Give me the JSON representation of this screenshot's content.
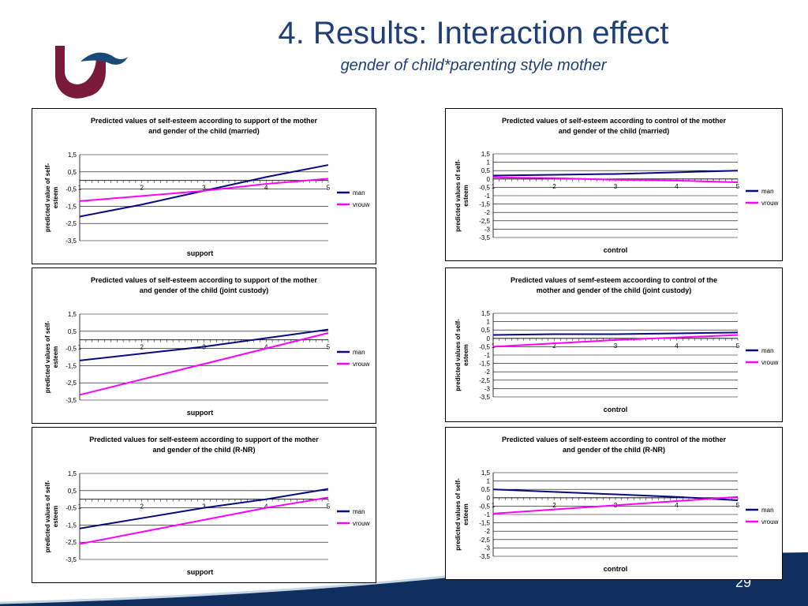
{
  "slide": {
    "title": "4. Results: Interaction effect",
    "subtitle": "gender of child*parenting style mother",
    "page_number": "29"
  },
  "colors": {
    "title": "#1f3f78",
    "logo_dark": "#7a1a3a",
    "logo_light": "#1a4a78",
    "man": "#0a0a80",
    "vrouw": "#ff00ff",
    "band": "#0f2f5f"
  },
  "chart_data": [
    {
      "type": "line",
      "title_lines": [
        "Predicted values of self-esteem according to support of the mother",
        "and gender of the child (married)"
      ],
      "ylabel_lines": [
        "predicted value of self-",
        "esteem"
      ],
      "xlabel": "support",
      "x": [
        1,
        2,
        3,
        4,
        5
      ],
      "yticks": [
        "1,5",
        "0,5",
        "-0,5",
        "-1,5",
        "-2,5",
        "-3,5"
      ],
      "ylim": [
        -3.5,
        1.5
      ],
      "ystep": 1,
      "series": [
        {
          "name": "man",
          "values": [
            -2.1,
            -1.4,
            -0.6,
            0.2,
            0.9
          ]
        },
        {
          "name": "vrouw",
          "values": [
            -1.2,
            -0.9,
            -0.6,
            -0.2,
            0.1
          ]
        }
      ],
      "legend": "right"
    },
    {
      "type": "line",
      "title_lines": [
        "Predicted values of self-esteem according to control of the mother",
        "and gender of the child (married)"
      ],
      "ylabel_lines": [
        "predicted values of self-",
        "esteem"
      ],
      "xlabel": "control",
      "x": [
        1,
        2,
        3,
        4,
        5
      ],
      "yticks": [
        "1,5",
        "1",
        "0,5",
        "0",
        "-0,5",
        "-1",
        "-1,5",
        "-2",
        "-2,5",
        "-3",
        "-3,5"
      ],
      "ylim": [
        -3.5,
        1.5
      ],
      "ystep": 0.5,
      "series": [
        {
          "name": "man",
          "values": [
            0.2,
            0.25,
            0.3,
            0.4,
            0.5
          ]
        },
        {
          "name": "vrouw",
          "values": [
            0.1,
            0.05,
            -0.05,
            -0.1,
            -0.2
          ]
        }
      ],
      "legend": "right"
    },
    {
      "type": "line",
      "title_lines": [
        "Predicted values of self-esteem according to support of the mother",
        "and gender of the child (joint custody)"
      ],
      "ylabel_lines": [
        "predicted values of self-",
        "esteem"
      ],
      "xlabel": "support",
      "x": [
        1,
        2,
        3,
        4,
        5
      ],
      "yticks": [
        "1,5",
        "0,5",
        "-0,5",
        "-1,5",
        "-2,5",
        "-3,5"
      ],
      "ylim": [
        -3.5,
        1.5
      ],
      "ystep": 1,
      "series": [
        {
          "name": "man",
          "values": [
            -1.2,
            -0.8,
            -0.4,
            0.1,
            0.6
          ]
        },
        {
          "name": "vrouw",
          "values": [
            -3.2,
            -2.3,
            -1.4,
            -0.5,
            0.4
          ]
        }
      ],
      "legend": "right"
    },
    {
      "type": "line",
      "title_lines": [
        "Predicted values of semf-esteem accoording to control of the",
        "mother and gender of the child (joint custody)"
      ],
      "ylabel_lines": [
        "predicted values of self-",
        "esteem"
      ],
      "xlabel": "control",
      "x": [
        1,
        2,
        3,
        4,
        5
      ],
      "yticks": [
        "1,5",
        "1",
        "0,5",
        "0",
        "-0,5",
        "-1",
        "-1,5",
        "-2",
        "-2,5",
        "-3",
        "-3,5"
      ],
      "ylim": [
        -3.5,
        1.5
      ],
      "ystep": 0.5,
      "series": [
        {
          "name": "man",
          "values": [
            0.2,
            0.25,
            0.25,
            0.3,
            0.35
          ]
        },
        {
          "name": "vrouw",
          "values": [
            -0.5,
            -0.3,
            -0.1,
            0.05,
            0.2
          ]
        }
      ],
      "legend": "right"
    },
    {
      "type": "line",
      "title_lines": [
        "Predicted values for self-esteem according to support of the mother",
        "and gender of the child (R-NR)"
      ],
      "ylabel_lines": [
        "predicted values of self-",
        "esteem"
      ],
      "xlabel": "support",
      "x": [
        1,
        2,
        3,
        4,
        5
      ],
      "yticks": [
        "1,5",
        "0,5",
        "-0,5",
        "-1,5",
        "-2,5",
        "-3,5"
      ],
      "ylim": [
        -3.5,
        1.5
      ],
      "ystep": 1,
      "series": [
        {
          "name": "man",
          "values": [
            -1.7,
            -1.1,
            -0.5,
            0.0,
            0.6
          ]
        },
        {
          "name": "vrouw",
          "values": [
            -2.6,
            -1.9,
            -1.2,
            -0.5,
            0.1
          ]
        }
      ],
      "legend": "right"
    },
    {
      "type": "line",
      "title_lines": [
        "Predicted values of self-esteem according to control of the mother",
        "and gender of the child (R-NR)"
      ],
      "ylabel_lines": [
        "predicted values of self-",
        "esteem"
      ],
      "xlabel": "control",
      "x": [
        1,
        2,
        3,
        4,
        5
      ],
      "yticks": [
        "1,5",
        "1",
        "0,5",
        "0",
        "-0,5",
        "-1",
        "-1,5",
        "-2",
        "-2,5",
        "-3",
        "-3,5"
      ],
      "ylim": [
        -3.5,
        1.5
      ],
      "ystep": 0.5,
      "series": [
        {
          "name": "man",
          "values": [
            0.5,
            0.35,
            0.2,
            0.05,
            -0.15
          ]
        },
        {
          "name": "vrouw",
          "values": [
            -0.95,
            -0.7,
            -0.45,
            -0.2,
            0.05
          ]
        }
      ],
      "legend": "right"
    }
  ]
}
